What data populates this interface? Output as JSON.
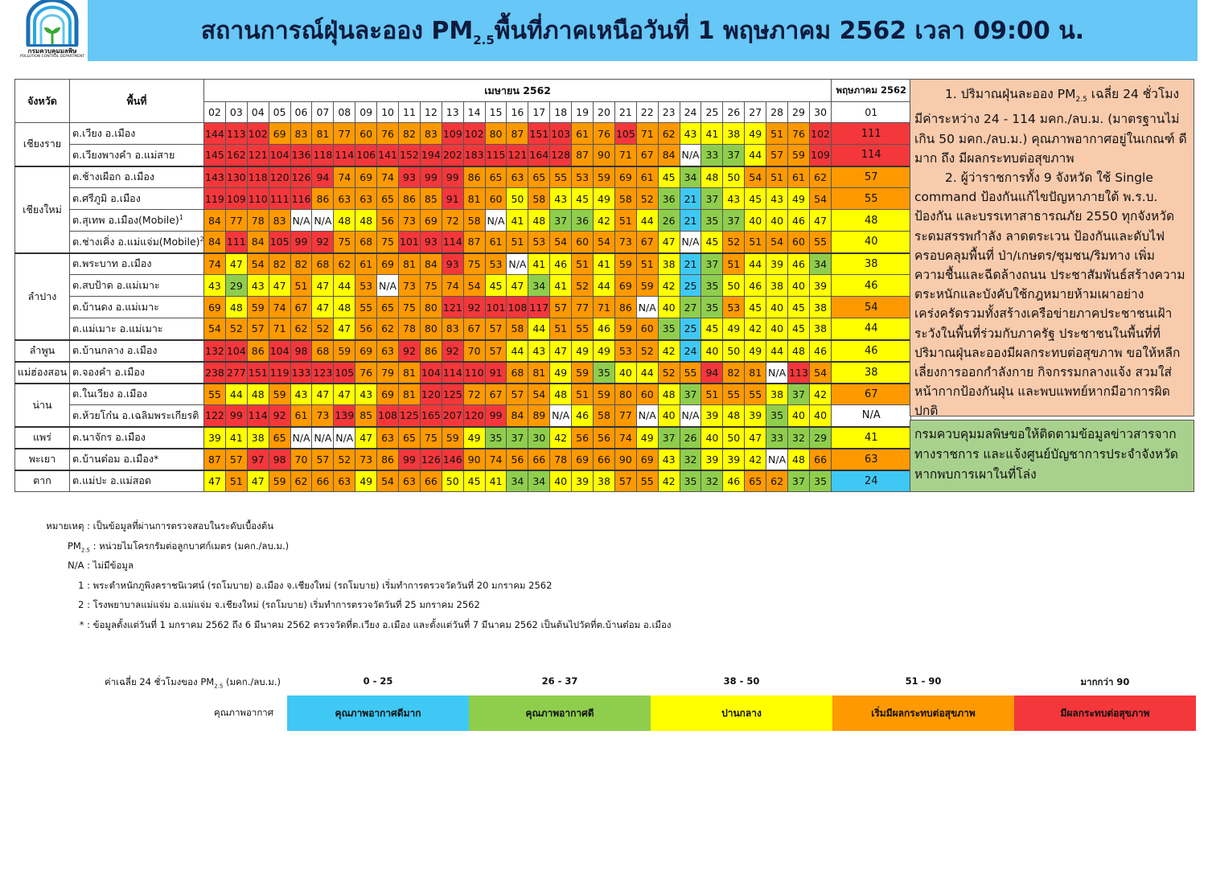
{
  "header": {
    "logo_name": "กรมควบคุมมลพิษ",
    "logo_sub": "POLLUTION CONTROL DEPARTMENT",
    "title_part1": "สถานการณ์ฝุ่นละออง PM",
    "title_sub": "2.5",
    "title_part2": "พื้นที่ภาคเหนือวันที่ 1 พฤษภาคม 2562 เวลา 09:00 น."
  },
  "table": {
    "col_province": "จังหวัด",
    "col_area": "พื้นที่",
    "month_april": "เมษายน 2562",
    "month_may": "พฤษภาคม 2562",
    "april_days": [
      "02",
      "03",
      "04",
      "05",
      "06",
      "07",
      "08",
      "09",
      "10",
      "11",
      "12",
      "13",
      "14",
      "15",
      "16",
      "17",
      "18",
      "19",
      "20",
      "21",
      "22",
      "23",
      "24",
      "25",
      "26",
      "27",
      "28",
      "29",
      "30"
    ],
    "may_day": "01",
    "groups": [
      {
        "province": "เชียงราย",
        "rows": [
          {
            "site": "ต.เวียง อ.เมือง",
            "values": [
              "144",
              "113",
              "102",
              "69",
              "83",
              "81",
              "77",
              "60",
              "76",
              "82",
              "83",
              "109",
              "102",
              "80",
              "87",
              "151",
              "103",
              "61",
              "76",
              "105",
              "71",
              "62",
              "43",
              "41",
              "38",
              "49",
              "51",
              "76",
              "102"
            ],
            "may": "111"
          },
          {
            "site": "ต.เวียงพางคำ อ.แม่สาย",
            "values": [
              "145",
              "162",
              "121",
              "104",
              "136",
              "118",
              "114",
              "106",
              "141",
              "152",
              "194",
              "202",
              "183",
              "115",
              "121",
              "164",
              "128",
              "87",
              "90",
              "71",
              "67",
              "84",
              "N/A",
              "33",
              "37",
              "44",
              "57",
              "59",
              "109"
            ],
            "may": "114"
          }
        ]
      },
      {
        "province": "เชียงใหม่",
        "rows": [
          {
            "site": "ต.ช้างเผือก อ.เมือง",
            "values": [
              "143",
              "130",
              "118",
              "120",
              "126",
              "94",
              "74",
              "69",
              "74",
              "93",
              "99",
              "99",
              "86",
              "65",
              "63",
              "65",
              "55",
              "53",
              "59",
              "69",
              "61",
              "45",
              "34",
              "48",
              "50",
              "54",
              "51",
              "61",
              "62"
            ],
            "may": "57"
          },
          {
            "site": "ต.ศรีภูมิ อ.เมือง",
            "values": [
              "119",
              "109",
              "110",
              "111",
              "116",
              "86",
              "63",
              "63",
              "65",
              "86",
              "85",
              "91",
              "81",
              "60",
              "50",
              "58",
              "43",
              "45",
              "49",
              "58",
              "52",
              "36",
              "21",
              "37",
              "43",
              "45",
              "43",
              "49",
              "54"
            ],
            "may": "55"
          },
          {
            "site": "ต.สุเทพ อ.เมือง(Mobile)",
            "sup": "1",
            "values": [
              "84",
              "77",
              "78",
              "83",
              "N/A",
              "N/A",
              "48",
              "48",
              "56",
              "73",
              "69",
              "72",
              "58",
              "N/A",
              "41",
              "48",
              "37",
              "36",
              "42",
              "51",
              "44",
              "26",
              "21",
              "35",
              "37",
              "40",
              "40",
              "46",
              "47"
            ],
            "may": "48"
          },
          {
            "site": "ต.ช่างเคิ่ง อ.แม่แจ่ม(Mobile)",
            "sup": "2",
            "values": [
              "84",
              "111",
              "84",
              "105",
              "99",
              "92",
              "75",
              "68",
              "75",
              "101",
              "93",
              "114",
              "87",
              "61",
              "51",
              "53",
              "54",
              "60",
              "54",
              "73",
              "67",
              "47",
              "N/A",
              "45",
              "52",
              "51",
              "54",
              "60",
              "55"
            ],
            "may": "40"
          }
        ]
      },
      {
        "province": "ลำปาง",
        "rows": [
          {
            "site": "ต.พระบาท อ.เมือง",
            "values": [
              "74",
              "47",
              "54",
              "82",
              "82",
              "68",
              "62",
              "61",
              "69",
              "81",
              "84",
              "93",
              "75",
              "53",
              "N/A",
              "41",
              "46",
              "51",
              "41",
              "59",
              "51",
              "38",
              "21",
              "37",
              "51",
              "44",
              "39",
              "46",
              "34"
            ],
            "may": "38"
          },
          {
            "site": "ต.สบป้าด อ.แม่เมาะ",
            "values": [
              "43",
              "29",
              "43",
              "47",
              "51",
              "47",
              "44",
              "53",
              "N/A",
              "73",
              "75",
              "74",
              "54",
              "45",
              "47",
              "34",
              "41",
              "52",
              "44",
              "69",
              "59",
              "42",
              "25",
              "35",
              "50",
              "46",
              "38",
              "40",
              "39"
            ],
            "may": "46"
          },
          {
            "site": "ต.บ้านดง อ.แม่เมาะ",
            "values": [
              "69",
              "48",
              "59",
              "74",
              "67",
              "47",
              "48",
              "55",
              "65",
              "75",
              "80",
              "121",
              "92",
              "101",
              "108",
              "117",
              "57",
              "77",
              "71",
              "86",
              "N/A",
              "40",
              "27",
              "35",
              "53",
              "45",
              "40",
              "45",
              "38"
            ],
            "may": "54"
          },
          {
            "site": "ต.แม่เมาะ อ.แม่เมาะ",
            "values": [
              "54",
              "52",
              "57",
              "71",
              "62",
              "52",
              "47",
              "56",
              "62",
              "78",
              "80",
              "83",
              "67",
              "57",
              "58",
              "44",
              "51",
              "55",
              "46",
              "59",
              "60",
              "35",
              "25",
              "45",
              "49",
              "42",
              "40",
              "45",
              "38"
            ],
            "may": "44"
          }
        ]
      },
      {
        "province": "ลำพูน",
        "rows": [
          {
            "site": "ต.บ้านกลาง อ.เมือง",
            "values": [
              "132",
              "104",
              "86",
              "104",
              "98",
              "68",
              "59",
              "69",
              "63",
              "92",
              "86",
              "92",
              "70",
              "57",
              "44",
              "43",
              "47",
              "49",
              "49",
              "53",
              "52",
              "42",
              "24",
              "40",
              "50",
              "49",
              "44",
              "48",
              "46"
            ],
            "may": "46"
          }
        ]
      },
      {
        "province": "แม่ฮ่องสอน",
        "rows": [
          {
            "site": "ต.จองคำ อ.เมือง",
            "values": [
              "238",
              "277",
              "151",
              "119",
              "133",
              "123",
              "105",
              "76",
              "79",
              "81",
              "104",
              "114",
              "110",
              "91",
              "68",
              "81",
              "49",
              "59",
              "35",
              "40",
              "44",
              "52",
              "55",
              "94",
              "82",
              "81",
              "N/A",
              "113",
              "54"
            ],
            "may": "38"
          }
        ]
      },
      {
        "province": "น่าน",
        "rows": [
          {
            "site": "ต.ในเวียง อ.เมือง",
            "values": [
              "55",
              "44",
              "48",
              "59",
              "43",
              "47",
              "47",
              "43",
              "69",
              "81",
              "120",
              "125",
              "72",
              "67",
              "57",
              "54",
              "48",
              "51",
              "59",
              "80",
              "60",
              "48",
              "37",
              "51",
              "55",
              "55",
              "38",
              "37",
              "42"
            ],
            "may": "67"
          },
          {
            "site": "ต.ห้วยโก๋น อ.เฉลิมพระเกียรติ",
            "values": [
              "122",
              "99",
              "114",
              "92",
              "61",
              "73",
              "139",
              "85",
              "108",
              "125",
              "165",
              "207",
              "120",
              "99",
              "84",
              "89",
              "N/A",
              "46",
              "58",
              "77",
              "N/A",
              "40",
              "N/A",
              "39",
              "48",
              "39",
              "35",
              "40",
              "40"
            ],
            "may": "N/A"
          }
        ]
      },
      {
        "province": "แพร่",
        "rows": [
          {
            "site": "ต.นาจักร อ.เมือง",
            "values": [
              "39",
              "41",
              "38",
              "65",
              "N/A",
              "N/A",
              "N/A",
              "47",
              "63",
              "65",
              "75",
              "59",
              "49",
              "35",
              "37",
              "30",
              "42",
              "56",
              "56",
              "74",
              "49",
              "37",
              "26",
              "40",
              "50",
              "47",
              "33",
              "32",
              "29"
            ],
            "may": "41"
          }
        ]
      },
      {
        "province": "พะเยา",
        "rows": [
          {
            "site": "ต.บ้านต๋อม อ.เมือง*",
            "values": [
              "87",
              "57",
              "97",
              "98",
              "70",
              "57",
              "52",
              "73",
              "86",
              "99",
              "126",
              "146",
              "90",
              "74",
              "56",
              "66",
              "78",
              "69",
              "66",
              "90",
              "69",
              "43",
              "32",
              "39",
              "39",
              "42",
              "N/A",
              "48",
              "66"
            ],
            "may": "63"
          }
        ]
      },
      {
        "province": "ตาก",
        "rows": [
          {
            "site": "ต.แม่ปะ อ.แม่สอด",
            "values": [
              "47",
              "51",
              "47",
              "59",
              "62",
              "66",
              "63",
              "49",
              "54",
              "63",
              "66",
              "50",
              "45",
              "41",
              "34",
              "34",
              "40",
              "39",
              "38",
              "57",
              "55",
              "42",
              "35",
              "32",
              "46",
              "65",
              "62",
              "37",
              "35"
            ],
            "may": "24"
          }
        ]
      }
    ]
  },
  "info": {
    "p1_a": "1. ปริมาณฝุ่นละออง PM",
    "p1_sub": "2.5",
    "p1_b": " เฉลี่ย 24 ชั่วโมง มีค่าระหว่าง 24 - 114 มคก./ลบ.ม. (มาตรฐานไม่เกิน 50 มคก./ลบ.ม.) คุณภาพอากาศอยู่ในเกณฑ์ ดีมาก ถึง มีผลกระทบต่อสุขภาพ",
    "p2_a": "2.  ผู้ว่าราชการทั้ง 9 จังหวัด ใช้ Single",
    "p2_b": "command ป้องกันแก้ไขปัญหาภายใต้ พ.ร.บ. ป้องกัน และบรรเทาสาธารณภัย 2550 ทุกจังหวัด ระดมสรรพกำลัง ลาดตระเวน  ป้องกันและดับไฟครอบคลุมพื้นที่ ป่า/เกษตร/ชุมชน/ริมทาง เพิ่มความชื้นและฉีดล้างถนน ประชาสัมพันธ์สร้างความตระหนักและบังคับใช้กฎหมายห้ามเผาอย่างเคร่งครัดรวมทั้งสร้างเครือข่ายภาคประชาชนเฝ้าระวังในพื้นที่ร่วมกับภาครัฐ ประชาชนในพื้นที่ที่ปริมาณฝุ่นละอองมีผลกระทบต่อสุขภาพ ขอให้หลีกเลี่ยงการออกกำลังกาย กิจกรรมกลางแจ้ง สวมใส่หน้ากากป้องกันฝุ่น และพบแพทย์หากมีอาการผิดปกติ",
    "notice": "กรมควบคุมมลพิษขอให้ติดตามข้อมูลข่าวสารจากทางราชการ และแจ้งศูนย์บัญชาการประจำจังหวัดหากพบการเผาในที่โล่ง"
  },
  "notes": {
    "remark_key": "หมายเหตุ :",
    "remark_text": "เป็นข้อมูลที่ผ่านการตรวจสอบในระดับเบื้องต้น",
    "pm_key": "PM",
    "pm_sub": "2.5",
    "pm_text": ": หน่วยไมโครกรัมต่อลูกบาศก์เมตร (มคก./ลบ.ม.)",
    "na_key": "N/A :",
    "na_text": "ไม่มีข้อมูล",
    "n1_key": "1 :",
    "n1_text": "พระตำหนักภูพิงคราชนิเวศน์ (รถโมบาย) อ.เมือง จ.เชียงใหม่ (รถโมบาย)  เริ่มทำการตรวจวัดวันที่ 20 มกราคม 2562",
    "n2_key": "2 :",
    "n2_text": "โรงพยาบาลแม่แจ่ม อ.แม่แจ่ม จ.เชียงใหม่ (รถโมบาย)  เริ่มทำการตรวจวัดวันที่ 25 มกราคม 2562",
    "star_key": "* :",
    "star_text": "ข้อมูลตั้งแต่วันที่ 1 มกราคม 2562 ถึง 6 มีนาคม 2562 ตรวจวัดที่ต.เวียง อ.เมือง และตั้งแต่วันที่ 7 มีนาคม 2562 เป็นต้นไปวัดที่ต.บ้านต๋อม อ.เมือง"
  },
  "legend": {
    "avg_label_a": "ค่าเฉลี่ย 24 ชั่วโมงของ PM",
    "avg_label_sub": "2.5",
    "avg_label_b": " (มคก./ลบ.ม.)",
    "quality_label": "คุณภาพอากาศ",
    "levels": [
      {
        "range": "0 - 25",
        "label": "คุณภาพอากาศดีมาก",
        "color": "#3fc8f4"
      },
      {
        "range": "26 - 37",
        "label": "คุณภาพอากาศดี",
        "color": "#8fce4c"
      },
      {
        "range": "38 - 50",
        "label": "ปานกลาง",
        "color": "#ffff00"
      },
      {
        "range": "51 - 90",
        "label": "เริ่มมีผลกระทบต่อสุขภาพ",
        "color": "#ff9900"
      },
      {
        "range": "มากกว่า 90",
        "label": "มีผลกระทบต่อสุขภาพ",
        "color": "#f4373b"
      }
    ]
  }
}
